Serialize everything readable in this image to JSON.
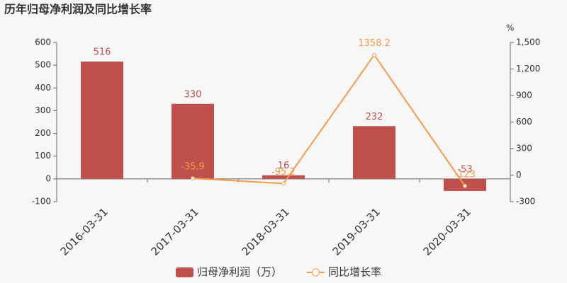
{
  "chart_data": {
    "type": "bar",
    "title": "历年归母净利润及同比增长率",
    "y2label": "%",
    "categories": [
      "2016-03-31",
      "2017-03-31",
      "2018-03-31",
      "2019-03-31",
      "2020-03-31"
    ],
    "series": [
      {
        "name": "归母净利润（万）",
        "type": "bar",
        "color": "#c0504d",
        "values": [
          516,
          330,
          16,
          232,
          -53
        ]
      },
      {
        "name": "同比增长率",
        "type": "line",
        "axis": "y2",
        "color": "#f79b45",
        "values": [
          null,
          -35.9,
          -95.2,
          1358.2,
          -123
        ]
      }
    ],
    "ylim": [
      -100,
      600
    ],
    "yticks": [
      -100,
      0,
      100,
      200,
      300,
      400,
      500,
      600
    ],
    "y2lim": [
      -300,
      1500
    ],
    "y2ticks": [
      -300,
      0,
      300,
      600,
      900,
      {
        "value": 1200,
        "label": "1,200"
      },
      {
        "value": 1500,
        "label": "1,500"
      }
    ]
  }
}
